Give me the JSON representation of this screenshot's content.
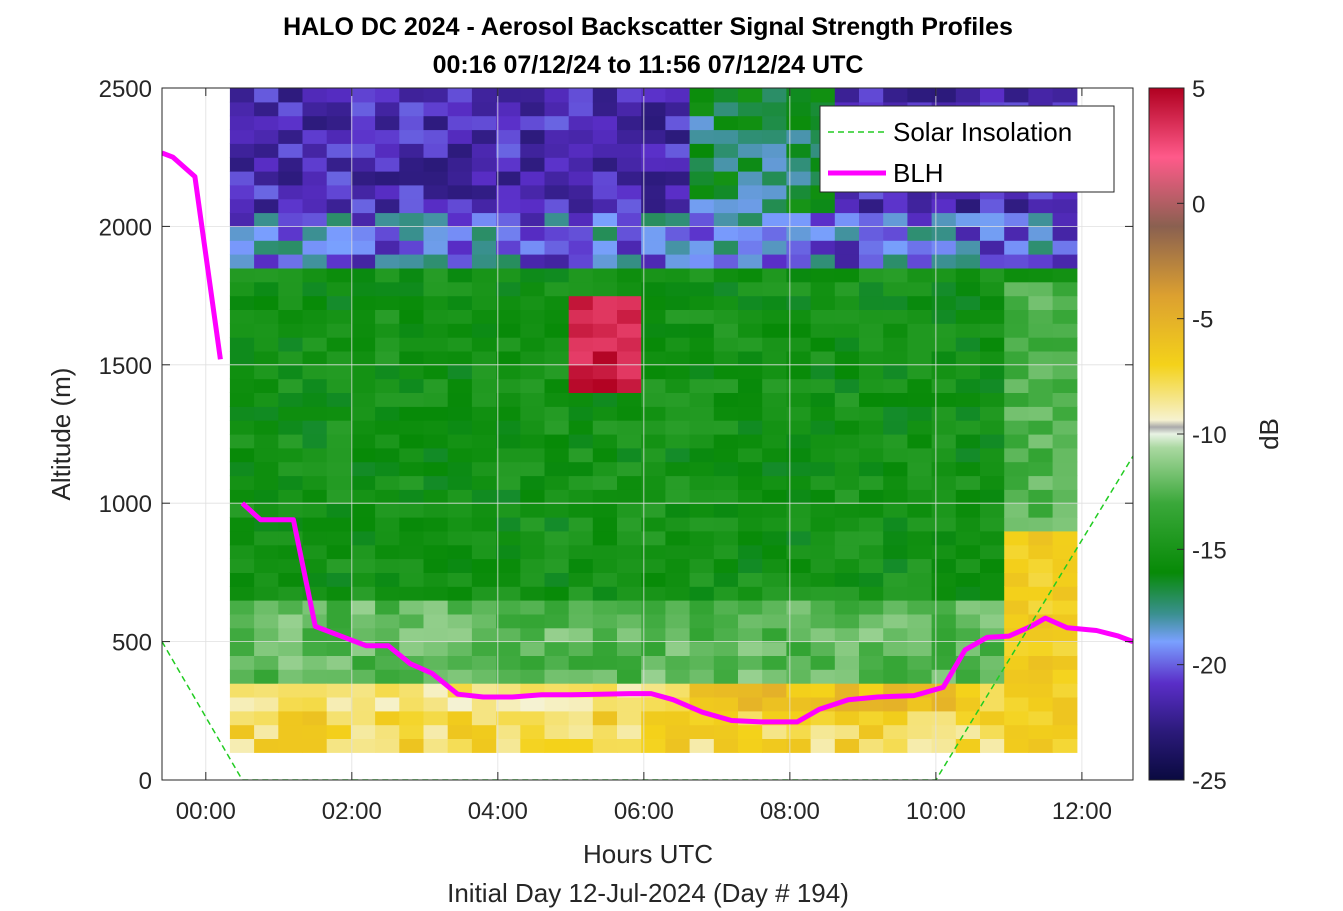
{
  "chart_data": {
    "type": "heatmap",
    "title": "HALO DC 2024 - Aerosol Backscatter Signal Strength Profiles",
    "subtitle": "00:16 07/12/24 to 11:56 07/12/24  UTC",
    "xlabel": "Hours UTC",
    "xlabel2": "Initial Day 12-Jul-2024 (Day # 194)",
    "ylabel": "Altitude (m)",
    "colorbar_label": "dB",
    "xlim": [
      -0.6,
      12.7
    ],
    "ylim": [
      0,
      2500
    ],
    "clim": [
      -25,
      5
    ],
    "x_ticks": [
      0,
      2,
      4,
      6,
      8,
      10,
      12
    ],
    "x_tick_labels": [
      "00:00",
      "02:00",
      "04:00",
      "06:00",
      "08:00",
      "10:00",
      "12:00"
    ],
    "y_ticks": [
      0,
      500,
      1000,
      1500,
      2000,
      2500
    ],
    "y_tick_labels": [
      "0",
      "500",
      "1000",
      "1500",
      "2000",
      "2500"
    ],
    "cbar_ticks": [
      -25,
      -20,
      -15,
      -10,
      -5,
      0,
      5
    ],
    "cbar_tick_labels": [
      "-25",
      "-20",
      "-15",
      "-10",
      "-5",
      "0",
      "5"
    ],
    "grid": true,
    "legend_position": "top-right",
    "legend": [
      {
        "name": "Solar Insolation",
        "color": "#22cc22",
        "style": "dashed"
      },
      {
        "name": "BLH",
        "color": "#ff00ff",
        "style": "solid"
      }
    ],
    "heatmap": {
      "x_start": 0.33,
      "x_end": 11.93,
      "y_start": 100,
      "y_end": 2500,
      "note_columns": "35 time bins",
      "bin_height_m": 50,
      "profile_hours": [
        0.3,
        1.0,
        2.0,
        3.0,
        4.0,
        5.0,
        5.5,
        6.0,
        7.0,
        8.0,
        9.0,
        10.0,
        11.0,
        11.9
      ],
      "signal_db_by_altitude_bin": "varies: ~-8 near surface, ~-11 to -13 at 300-600 m, ~-14 to -16 at 700-1800 m, ~-22 to -25 above 2000 m; strong returns (~+3 dB) near 1500-1700 m at 05:00-06:00"
    },
    "series": [
      {
        "name": "BLH",
        "segments": [
          {
            "x": [
              -0.6,
              -0.45,
              -0.15,
              0.2
            ],
            "y": [
              2265,
              2250,
              2180,
              1520
            ]
          },
          {
            "x": [
              0.5,
              0.75,
              1.2,
              1.5,
              1.8,
              2.2,
              2.5,
              2.8,
              3.1,
              3.45,
              3.8,
              4.2,
              4.6,
              5.0,
              5.4,
              5.8,
              6.1,
              6.4,
              6.8,
              7.2,
              7.6,
              8.1,
              8.4,
              8.8,
              9.2,
              9.7,
              10.1,
              10.4,
              10.7,
              11.0,
              11.3,
              11.5,
              11.8,
              12.2,
              12.5,
              12.7
            ],
            "y": [
              1000,
              940,
              940,
              555,
              525,
              485,
              485,
              420,
              385,
              310,
              300,
              300,
              308,
              308,
              310,
              312,
              312,
              290,
              245,
              215,
              210,
              210,
              255,
              290,
              300,
              305,
              335,
              470,
              515,
              520,
              555,
              585,
              550,
              540,
              520,
              500
            ]
          }
        ]
      },
      {
        "name": "Solar Insolation",
        "x": [
          -0.6,
          0.5,
          10.0,
          12.7
        ],
        "y": [
          500,
          0,
          0,
          1170
        ]
      }
    ]
  }
}
